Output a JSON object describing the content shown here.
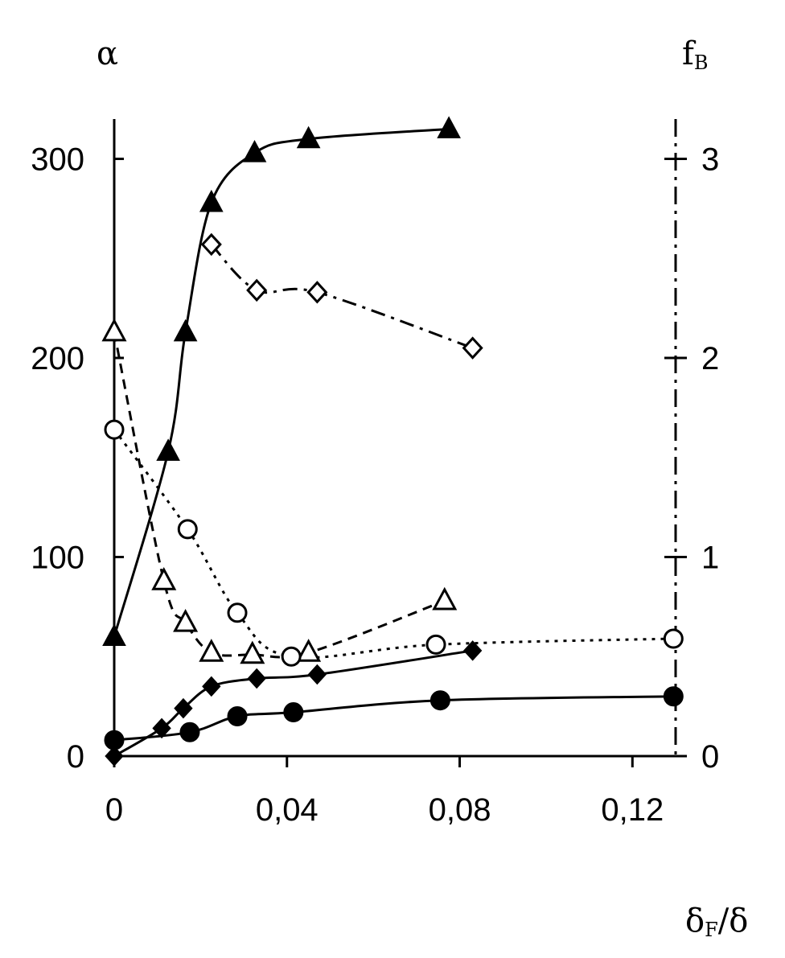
{
  "chart_data": {
    "type": "scatter",
    "xlabel": {
      "main": "δ",
      "sub": "F",
      "tail": "/δ"
    },
    "ylabel_left": "α",
    "ylabel_right": {
      "main": "f",
      "sub": "B"
    },
    "xlim": [
      0,
      0.13
    ],
    "ylim_left": [
      0,
      320
    ],
    "ylim_right": [
      0,
      3.2
    ],
    "x_ticks": [
      {
        "value": 0,
        "label": "0"
      },
      {
        "value": 0.04,
        "label": "0,04"
      },
      {
        "value": 0.08,
        "label": "0,08"
      },
      {
        "value": 0.12,
        "label": "0,12"
      }
    ],
    "y_ticks_left": [
      {
        "value": 0,
        "label": "0"
      },
      {
        "value": 100,
        "label": "100"
      },
      {
        "value": 200,
        "label": "200"
      },
      {
        "value": 300,
        "label": "300"
      }
    ],
    "y_ticks_right": [
      {
        "value": 0,
        "label": "0"
      },
      {
        "value": 1,
        "label": "1"
      },
      {
        "value": 2,
        "label": "2"
      },
      {
        "value": 3,
        "label": "3"
      }
    ],
    "series": [
      {
        "marker": "filled-triangle",
        "line": "solid",
        "axis": "left",
        "x": [
          0,
          0.0125,
          0.0165,
          0.0225,
          0.0325,
          0.045,
          0.0775
        ],
        "y": [
          60,
          153,
          213,
          278,
          303,
          310,
          315
        ]
      },
      {
        "marker": "open-diamond",
        "line": "dashdot",
        "axis": "left",
        "x": [
          0.0225,
          0.033,
          0.047,
          0.083
        ],
        "y": [
          257,
          234,
          233,
          205
        ]
      },
      {
        "marker": "open-triangle",
        "line": "dash",
        "axis": "left",
        "x": [
          0,
          0.0115,
          0.0165,
          0.0225,
          0.032,
          0.045,
          0.0765
        ],
        "y": [
          213,
          88,
          67,
          52,
          51,
          52,
          78
        ]
      },
      {
        "marker": "open-circle",
        "line": "dot",
        "axis": "left",
        "x": [
          0,
          0.017,
          0.0285,
          0.041,
          0.0745,
          0.1295
        ],
        "y": [
          164,
          114,
          72,
          50,
          56,
          59
        ]
      },
      {
        "marker": "filled-diamond",
        "line": "solid",
        "axis": "left",
        "x": [
          0,
          0.011,
          0.016,
          0.0225,
          0.033,
          0.047,
          0.083
        ],
        "y": [
          0,
          14,
          24,
          35,
          39,
          41,
          53
        ]
      },
      {
        "marker": "filled-circle",
        "line": "solid",
        "axis": "left",
        "x": [
          0,
          0.0175,
          0.0285,
          0.0415,
          0.0755,
          0.1295
        ],
        "y": [
          8,
          12,
          20,
          22,
          28,
          30
        ]
      }
    ]
  }
}
